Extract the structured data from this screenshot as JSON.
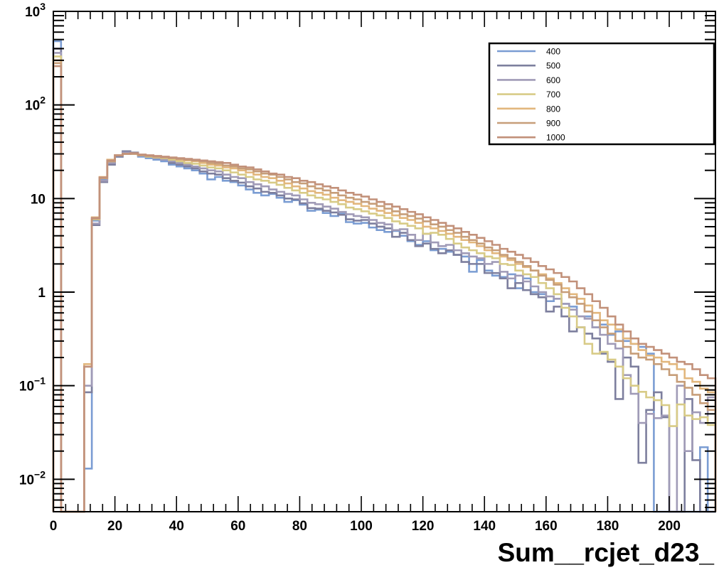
{
  "chart_data": {
    "type": "line",
    "title": "",
    "xlabel": "Sum__rcjet_d23_",
    "ylabel": "",
    "xlim": [
      0,
      215
    ],
    "ylim": [
      0.0045,
      1000
    ],
    "yscale": "log",
    "grid": false,
    "legend_position": "top-right",
    "xtick_labels": [
      "0",
      "20",
      "40",
      "60",
      "80",
      "100",
      "120",
      "140",
      "160",
      "180",
      "200"
    ],
    "ytick_labels": [
      {
        "mant": "10",
        "exp": "−2"
      },
      {
        "mant": "10",
        "exp": "−1"
      },
      {
        "mant": "1",
        "exp": ""
      },
      {
        "mant": "10",
        "exp": ""
      },
      {
        "mant": "10",
        "exp": "2"
      },
      {
        "mant": "10",
        "exp": "3"
      }
    ],
    "bin_edges": [
      0,
      2.5,
      5,
      7.5,
      10,
      12.5,
      15,
      17.5,
      20,
      22.5,
      25,
      27.5,
      30,
      32.5,
      35,
      37.5,
      40,
      42.5,
      45,
      47.5,
      50,
      52.5,
      55,
      57.5,
      60,
      62.5,
      65,
      67.5,
      70,
      72.5,
      75,
      77.5,
      80,
      82.5,
      85,
      87.5,
      90,
      92.5,
      95,
      97.5,
      100,
      102.5,
      105,
      107.5,
      110,
      112.5,
      115,
      117.5,
      120,
      122.5,
      125,
      127.5,
      130,
      132.5,
      135,
      137.5,
      140,
      142.5,
      145,
      147.5,
      150,
      152.5,
      155,
      157.5,
      160,
      162.5,
      165,
      167.5,
      170,
      172.5,
      175,
      177.5,
      180,
      182.5,
      185,
      187.5,
      190,
      192.5,
      195,
      197.5,
      200,
      202.5,
      205,
      207.5,
      210,
      212.5,
      215
    ],
    "series": [
      {
        "name": "400",
        "color": "#7b9dd3",
        "values": [
          480,
          0.003,
          0.003,
          0.003,
          0.013,
          5.8,
          16,
          24,
          28,
          31,
          30,
          28,
          27,
          26,
          25,
          23,
          22,
          21,
          20,
          18.5,
          16,
          17,
          15.5,
          15,
          13.8,
          12.5,
          11.5,
          10.8,
          11.2,
          10.2,
          9.2,
          9.6,
          8.6,
          7.4,
          7.6,
          7.0,
          6.5,
          6.9,
          5.6,
          5.4,
          5.5,
          4.9,
          4.6,
          4.4,
          4.5,
          4.0,
          3.5,
          3.2,
          3.5,
          2.8,
          2.9,
          2.7,
          2.5,
          2.4,
          1.65,
          2.2,
          1.7,
          1.5,
          1.45,
          1.55,
          1.1,
          1.4,
          1.0,
          0.95,
          0.8,
          0.85,
          0.75,
          0.7,
          0.55,
          0.55,
          0.42,
          0.45,
          0.35,
          0.38,
          0.3,
          0.28,
          0.26,
          0.22,
          0.003,
          0.003,
          0.003,
          0.003,
          0.003,
          0.003,
          0.022,
          0.003
        ]
      },
      {
        "name": "500",
        "color": "#7d7f9e",
        "values": [
          400,
          0.003,
          0.003,
          0.003,
          0.085,
          5.2,
          15,
          23,
          28,
          32,
          31,
          29,
          28,
          27,
          26,
          24,
          23,
          22,
          21,
          19.5,
          18.5,
          18,
          16.5,
          15.5,
          14.8,
          13.5,
          12.8,
          11.8,
          11.5,
          10.8,
          10.0,
          9.8,
          8.9,
          7.9,
          7.8,
          7.4,
          7.1,
          6.7,
          6.0,
          5.8,
          5.9,
          5.4,
          5.0,
          4.8,
          3.9,
          4.3,
          3.6,
          3.1,
          3.3,
          2.9,
          2.6,
          2.8,
          2.5,
          2.1,
          2.0,
          2.0,
          1.6,
          1.6,
          1.4,
          1.1,
          1.25,
          1.05,
          0.95,
          0.88,
          0.62,
          0.7,
          0.55,
          0.38,
          0.42,
          0.36,
          0.32,
          0.22,
          0.18,
          0.072,
          0.2,
          0.16,
          0.015,
          0.055,
          0.085,
          0.046,
          0.003,
          0.003,
          0.072,
          0.016,
          0.003,
          0.003
        ]
      },
      {
        "name": "600",
        "color": "#a09bb7",
        "values": [
          360,
          0.003,
          0.003,
          0.003,
          0.1,
          5.4,
          15.5,
          24,
          29,
          31,
          30,
          29,
          28,
          27,
          26,
          25,
          24,
          23,
          22,
          21,
          20,
          19.5,
          18,
          17,
          16.5,
          15,
          14.2,
          13.5,
          12.5,
          11.8,
          11.2,
          10.8,
          9.8,
          9.0,
          8.7,
          8.2,
          7.8,
          7.2,
          6.8,
          6.5,
          6.3,
          5.9,
          5.5,
          5.3,
          4.6,
          4.7,
          4.1,
          3.6,
          4.2,
          3.4,
          3.1,
          3.2,
          2.8,
          2.6,
          2.4,
          2.3,
          2.0,
          2.1,
          1.65,
          1.4,
          1.5,
          1.3,
          1.15,
          1.0,
          0.9,
          0.85,
          0.75,
          0.65,
          0.55,
          0.52,
          0.42,
          0.35,
          0.28,
          0.25,
          0.13,
          0.082,
          0.04,
          0.05,
          0.045,
          0.048,
          0.003,
          0.1,
          0.02,
          0.052,
          0.04,
          0.075
        ]
      },
      {
        "name": "700",
        "color": "#d8cb87",
        "values": [
          330,
          0.003,
          0.003,
          0.003,
          0.16,
          6.0,
          16.5,
          25,
          29,
          30,
          30,
          29,
          28,
          27.5,
          27,
          26,
          25,
          24,
          23.5,
          22.5,
          21.5,
          21,
          20,
          19,
          18,
          17,
          16,
          15.5,
          14.8,
          14,
          13,
          12.2,
          11.5,
          10.8,
          10.2,
          9.8,
          9.2,
          8.7,
          8.0,
          7.7,
          7.3,
          6.9,
          6.6,
          6.2,
          5.7,
          5.4,
          5.1,
          4.8,
          4.2,
          4.3,
          4.1,
          3.7,
          3.3,
          3.0,
          2.8,
          2.6,
          2.4,
          2.3,
          2.0,
          1.95,
          1.7,
          1.55,
          1.45,
          1.25,
          1.1,
          0.95,
          0.68,
          0.55,
          0.42,
          0.28,
          0.22,
          0.23,
          0.19,
          0.16,
          0.12,
          0.1,
          0.086,
          0.075,
          0.07,
          0.062,
          0.037,
          0.063,
          0.048,
          0.044,
          0.046,
          0.038
        ]
      },
      {
        "name": "800",
        "color": "#e2b77d",
        "values": [
          300,
          0.003,
          0.003,
          0.003,
          0.17,
          6.3,
          17,
          26,
          29,
          30,
          30,
          29,
          28.5,
          28,
          27.5,
          27,
          26,
          25.5,
          25,
          24,
          23,
          22.5,
          21.5,
          21,
          20,
          19,
          18,
          17,
          16.5,
          15.5,
          14.5,
          13.5,
          12.8,
          12.0,
          11.5,
          11.0,
          10.2,
          9.6,
          9.2,
          8.8,
          8.3,
          7.8,
          7.4,
          7.0,
          6.6,
          6.2,
          5.9,
          5.5,
          5.0,
          4.8,
          4.5,
          4.2,
          3.9,
          3.6,
          3.4,
          3.1,
          2.8,
          2.6,
          2.4,
          2.2,
          2.0,
          1.85,
          1.7,
          1.55,
          1.4,
          1.25,
          1.1,
          0.95,
          0.85,
          0.72,
          0.6,
          0.5,
          0.45,
          0.4,
          0.32,
          0.28,
          0.24,
          0.21,
          0.2,
          0.18,
          0.17,
          0.15,
          0.12,
          0.11,
          0.093,
          0.085
        ]
      },
      {
        "name": "900",
        "color": "#c79e79",
        "values": [
          280,
          0.003,
          0.003,
          0.003,
          0.16,
          6.1,
          16.5,
          25,
          29,
          30,
          30,
          29,
          28.5,
          28,
          27.5,
          27,
          26.5,
          26,
          25.5,
          25,
          24,
          23.5,
          22.5,
          22,
          21,
          20.5,
          19.5,
          18.5,
          18,
          17,
          16,
          15,
          14.5,
          13.5,
          12.8,
          12.2,
          11.5,
          10.8,
          10.2,
          9.8,
          9.2,
          8.8,
          8.3,
          7.8,
          7.3,
          6.8,
          6.5,
          6.1,
          5.7,
          5.3,
          5.0,
          4.6,
          4.3,
          3.9,
          3.6,
          3.3,
          3.0,
          2.8,
          2.5,
          2.3,
          2.1,
          1.9,
          1.7,
          1.5,
          1.35,
          1.2,
          1.0,
          0.88,
          0.75,
          0.62,
          0.5,
          0.42,
          0.36,
          0.3,
          0.26,
          0.22,
          0.2,
          0.19,
          0.17,
          0.15,
          0.13,
          0.11,
          0.095,
          0.08,
          0.065,
          0.055
        ]
      },
      {
        "name": "1000",
        "color": "#c2917a",
        "values": [
          260,
          0.003,
          0.003,
          0.003,
          0.16,
          6.2,
          16.8,
          25.5,
          29,
          30,
          30.5,
          29.5,
          29,
          28.5,
          28,
          27.5,
          27,
          26.5,
          26,
          25.5,
          25,
          24.5,
          24,
          23,
          22,
          21.5,
          20.5,
          19.5,
          18.5,
          18,
          17,
          16.5,
          15.5,
          15,
          14.2,
          13.5,
          13,
          12.2,
          11.5,
          11,
          10.5,
          9.8,
          9.2,
          8.7,
          8.2,
          7.7,
          7.2,
          6.8,
          6.3,
          5.9,
          5.5,
          5.1,
          4.8,
          4.4,
          4.1,
          3.8,
          3.5,
          3.2,
          2.9,
          2.7,
          2.5,
          2.3,
          2.1,
          1.9,
          1.75,
          1.6,
          1.45,
          1.3,
          1.1,
          0.95,
          0.8,
          0.68,
          0.55,
          0.45,
          0.38,
          0.32,
          0.28,
          0.26,
          0.24,
          0.22,
          0.2,
          0.18,
          0.17,
          0.15,
          0.13,
          0.12
        ]
      }
    ]
  }
}
